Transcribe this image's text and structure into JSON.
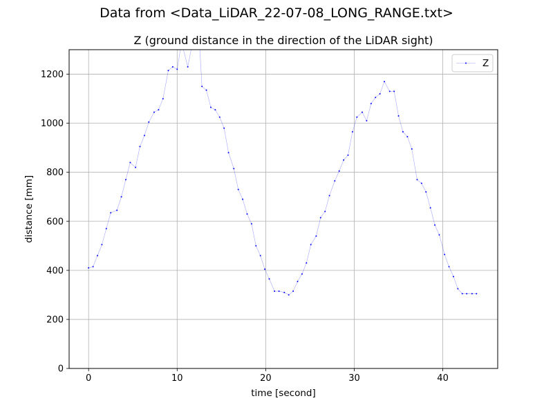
{
  "figure": {
    "suptitle": "Data from <Data_LiDAR_22-07-08_LONG_RANGE.txt>"
  },
  "chart_data": {
    "type": "line",
    "title": "Z (ground distance in the direction of the LiDAR sight)",
    "xlabel": "time [second]",
    "ylabel": "distance [mm]",
    "xlim": [
      -2.2,
      46.2
    ],
    "ylim": [
      0,
      1300
    ],
    "xticks": [
      0,
      10,
      20,
      30,
      40
    ],
    "yticks": [
      0,
      200,
      400,
      600,
      800,
      1000,
      1200
    ],
    "grid": true,
    "legend_position": "top-right",
    "series": [
      {
        "name": "Z",
        "color": "#0000ff",
        "marker": "point",
        "x": [
          0,
          0.5,
          1.0,
          1.5,
          2.0,
          2.5,
          3.2,
          3.7,
          4.2,
          4.7,
          5.3,
          5.8,
          6.3,
          6.8,
          7.4,
          7.9,
          8.4,
          9.0,
          9.5,
          10.0,
          10.5,
          11.2,
          11.9,
          12.5,
          12.8,
          13.3,
          13.8,
          14.3,
          14.8,
          15.3,
          15.8,
          16.4,
          16.9,
          17.4,
          17.9,
          18.4,
          18.9,
          19.4,
          19.9,
          20.4,
          21.0,
          21.5,
          22.1,
          22.6,
          23.1,
          23.6,
          24.1,
          24.6,
          25.1,
          25.7,
          26.2,
          26.7,
          27.2,
          27.8,
          28.3,
          28.8,
          29.3,
          29.8,
          30.3,
          30.9,
          31.4,
          31.9,
          32.4,
          32.9,
          33.4,
          34.0,
          34.5,
          35.0,
          35.5,
          36.0,
          36.5,
          37.1,
          37.6,
          38.1,
          38.6,
          39.1,
          39.6,
          40.2,
          40.7,
          41.2,
          41.7,
          42.2,
          42.7,
          43.3,
          43.8
        ],
        "y": [
          410,
          415,
          460,
          505,
          570,
          635,
          645,
          700,
          770,
          840,
          820,
          905,
          950,
          1005,
          1045,
          1055,
          1100,
          1215,
          1230,
          1220,
          1330,
          1230,
          1360,
          1340,
          1150,
          1135,
          1065,
          1055,
          1025,
          980,
          880,
          815,
          730,
          690,
          630,
          590,
          500,
          460,
          405,
          365,
          315,
          315,
          310,
          300,
          315,
          355,
          385,
          430,
          505,
          540,
          615,
          640,
          705,
          765,
          805,
          850,
          870,
          965,
          1025,
          1045,
          1010,
          1080,
          1105,
          1120,
          1170,
          1130,
          1130,
          1030,
          965,
          945,
          895,
          770,
          755,
          720,
          655,
          585,
          545,
          465,
          415,
          375,
          325,
          305,
          305,
          305,
          305
        ]
      }
    ]
  }
}
